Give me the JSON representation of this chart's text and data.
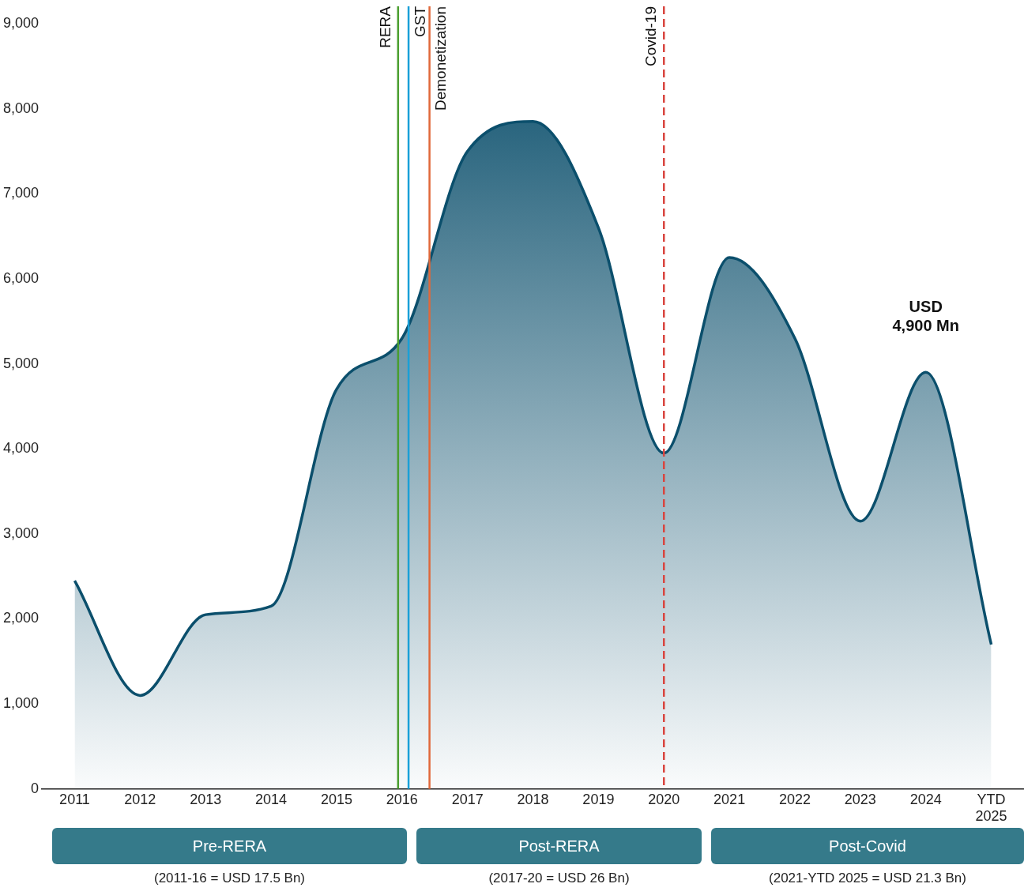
{
  "chart_data": {
    "type": "area",
    "x": [
      2011,
      2012,
      2013,
      2014,
      2015,
      2016,
      2017,
      2018,
      2019,
      2020,
      2021,
      2022,
      2023,
      2024,
      2025
    ],
    "series": [
      {
        "color": "#0b4f6c",
        "values": [
          2450,
          1100,
          2050,
          2150,
          4700,
          5300,
          7500,
          7850,
          6600,
          3950,
          6250,
          5300,
          3150,
          4900,
          1700
        ]
      }
    ],
    "xlim": [
      2010.5,
      2025.5
    ],
    "xticks": [
      2011,
      2012,
      2013,
      2014,
      2015,
      2016,
      2017,
      2018,
      2019,
      2020,
      2021,
      2022,
      2023,
      2024,
      {
        "value": 2025,
        "label": "YTD 2025"
      }
    ],
    "ylim": [
      0,
      9000
    ],
    "yticks": [
      {
        "value": 0,
        "label": "0"
      },
      {
        "value": 1000,
        "label": "1,000"
      },
      {
        "value": 2000,
        "label": "2,000"
      },
      {
        "value": 3000,
        "label": "3,000"
      },
      {
        "value": 4000,
        "label": "4,000"
      },
      {
        "value": 5000,
        "label": "5,000"
      },
      {
        "value": 6000,
        "label": "6,000"
      },
      {
        "value": 7000,
        "label": "7,000"
      },
      {
        "value": 8000,
        "label": "8,000"
      },
      {
        "value": 9000,
        "label": "9,000"
      }
    ],
    "grid": false,
    "legend": false,
    "marker": "none",
    "ref_lines": [
      {
        "axis": "x",
        "value": 2015.94,
        "label": "RERA",
        "color": "#4a9e2f",
        "line_style": "solid"
      },
      {
        "axis": "x",
        "value": 2016.1,
        "label": "GST",
        "color": "#1aa0d8",
        "line_style": "solid"
      },
      {
        "axis": "x",
        "value": 2016.42,
        "label": "Demonetization",
        "color": "#e0683a",
        "line_style": "solid"
      },
      {
        "axis": "x",
        "value": 2020,
        "label": "Covid-19",
        "color": "#d9453f",
        "line_style": "dashed"
      }
    ],
    "annotations": [
      {
        "text": "USD 4,900 Mn",
        "x": 2024,
        "y": 4900
      },
      "Pre-RERA",
      "(2011-16 = USD 17.5 Bn)",
      "Post-RERA",
      "(2017-20 = USD 26 Bn)",
      "Post-Covid",
      "(2021-YTD 2025 = USD 21.3 Bn)"
    ]
  }
}
